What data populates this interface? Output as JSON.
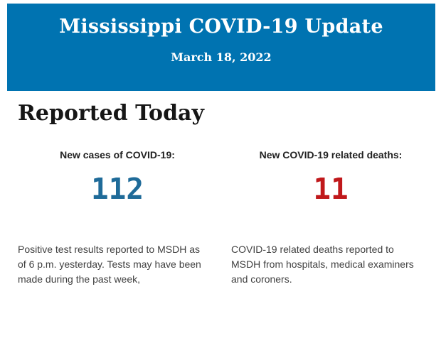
{
  "header": {
    "title": "Mississippi COVID-19 Update",
    "date": "March 18, 2022",
    "background_color": "#0073b1",
    "text_color": "#ffffff"
  },
  "main": {
    "heading": "Reported Today"
  },
  "stats": [
    {
      "label": "New cases of COVID-19:",
      "value": "112",
      "value_color": "#1f6b99",
      "description": "Positive test results reported to MSDH as\nof 6 p.m. yesterday. Tests may have been\nmade during the past week,"
    },
    {
      "label": "New COVID-19 related deaths:",
      "value": "11",
      "value_color": "#c0181b",
      "description": "COVID-19 related deaths reported to\nMSDH from hospitals, medical examiners\nand coroners."
    }
  ]
}
